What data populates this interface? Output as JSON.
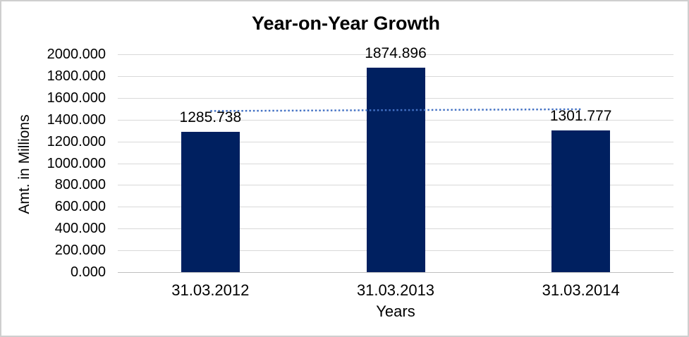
{
  "chart_data": {
    "type": "bar",
    "title": "Year-on-Year Growth",
    "xlabel": "Years",
    "ylabel": "Amt. in Millions",
    "categories": [
      "31.03.2012",
      "31.03.2013",
      "31.03.2014"
    ],
    "values": [
      1285.738,
      1874.896,
      1301.777
    ],
    "data_labels": [
      "1285.738",
      "1874.896",
      "1301.777"
    ],
    "ylim": [
      0,
      2000
    ],
    "ytick_step": 200,
    "ytick_labels": [
      "0.000",
      "200.000",
      "400.000",
      "600.000",
      "800.000",
      "1000.000",
      "1200.000",
      "1400.000",
      "1600.000",
      "1800.000",
      "2000.000"
    ],
    "grid": true,
    "legend": "none",
    "bar_color": "#002060",
    "gridline_color": "#d9d9d9",
    "text_color": "#000000",
    "trendline": {
      "type": "linear",
      "style": "dotted",
      "color": "#4472c4",
      "start_value": 1479.4,
      "end_value": 1495.5
    }
  }
}
